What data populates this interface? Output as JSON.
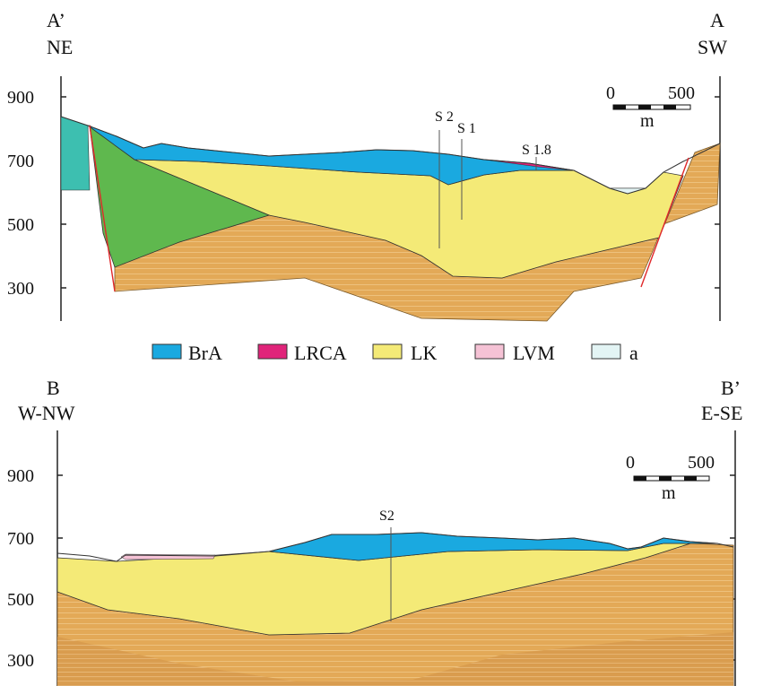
{
  "legend": [
    {
      "label": "BrA",
      "color": "#1aa9e0"
    },
    {
      "label": "LRCA",
      "color": "#e0247a"
    },
    {
      "label": "LK",
      "color": "#f4ea77"
    },
    {
      "label": "LVM",
      "color": "#f5c2d5"
    },
    {
      "label": "a",
      "color": "#e3f4f4"
    }
  ],
  "section_top": {
    "left_code": "A’",
    "left_dir": "NE",
    "right_code": "A",
    "right_dir": "SW",
    "y_ticks": [
      "900",
      "700",
      "500",
      "300"
    ],
    "scale": {
      "start": "0",
      "end": "500",
      "unit": "m"
    },
    "wells": [
      "S 2",
      "S 1",
      "S 1.8"
    ]
  },
  "section_bottom": {
    "left_code": "B",
    "left_dir": "W-NW",
    "right_code": "B’",
    "right_dir": "E-SE",
    "y_ticks": [
      "900",
      "700",
      "500",
      "300"
    ],
    "scale": {
      "start": "0",
      "end": "500",
      "unit": "m"
    },
    "wells": [
      "S2"
    ]
  },
  "colors": {
    "brA": "#1aa9e0",
    "lrca": "#e0247a",
    "lk": "#f4ea77",
    "lvm": "#f5c2d5",
    "alluvium": "#e3f4f4",
    "basement": "#e3a957",
    "green": "#5fb84e",
    "teal": "#3dbfb0",
    "fault": "#e0282a"
  }
}
